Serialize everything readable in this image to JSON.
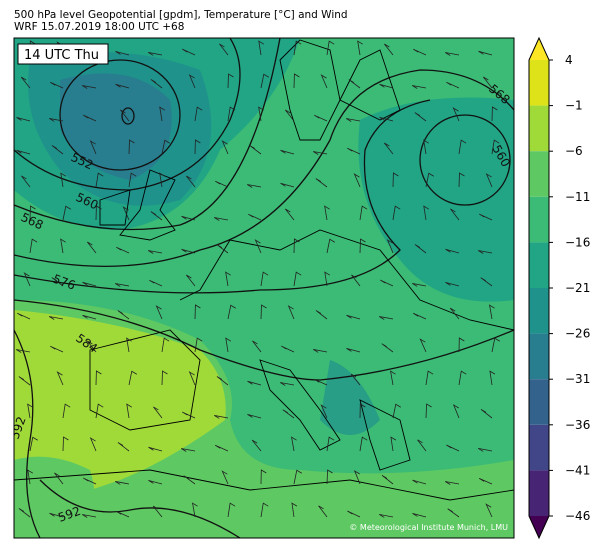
{
  "header": {
    "title": "500 hPa level Geopotential [gpdm], Temperature [°C] and Wind",
    "subtitle": "WRF 15.07.2019 18:00 UTC +68"
  },
  "map": {
    "time_label": "14 UTC Thu",
    "credit": "© Meteorological Institute Munich, LMU",
    "contour_labels": [
      "552",
      "560",
      "568",
      "576",
      "584",
      "592",
      "592",
      "568",
      "560"
    ]
  },
  "colorbar": {
    "range": [
      -46,
      4
    ],
    "ticks": [
      4,
      {
        "value": -1,
        "label": "−1"
      },
      {
        "value": -6,
        "label": "−6"
      },
      {
        "value": -11,
        "label": "−11"
      },
      {
        "value": -16,
        "label": "−16"
      },
      {
        "value": -21,
        "label": "−21"
      },
      {
        "value": -26,
        "label": "−26"
      },
      {
        "value": -31,
        "label": "−31"
      },
      {
        "value": -36,
        "label": "−36"
      },
      {
        "value": -41,
        "label": "−41"
      },
      {
        "value": -46,
        "label": "−46"
      }
    ],
    "colors": [
      "#dde318",
      "#a0da39",
      "#5ec962",
      "#3bbb75",
      "#21a585",
      "#1f928c",
      "#287d8e",
      "#33638d",
      "#404688",
      "#482475"
    ],
    "over_color": "#fde725",
    "under_color": "#440154"
  }
}
